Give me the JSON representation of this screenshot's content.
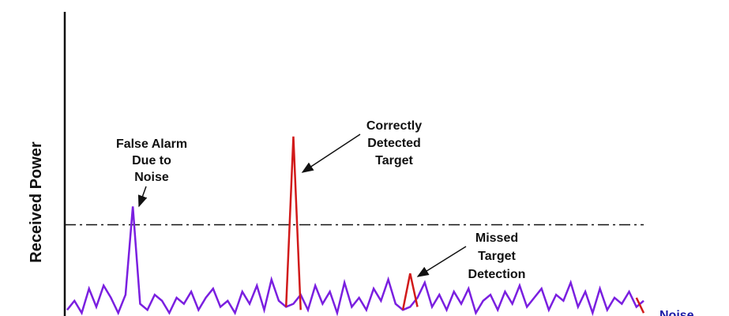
{
  "chart_data": {
    "type": "line",
    "y_label": "Received Power",
    "xlim": [
      0,
      79
    ],
    "ylim": [
      0,
      100
    ],
    "x": [
      0,
      1,
      2,
      3,
      4,
      5,
      6,
      7,
      8,
      9,
      10,
      11,
      12,
      13,
      14,
      15,
      16,
      17,
      18,
      19,
      20,
      21,
      22,
      23,
      24,
      25,
      26,
      27,
      28,
      29,
      30,
      31,
      32,
      33,
      34,
      35,
      36,
      37,
      38,
      39,
      40,
      41,
      42,
      43,
      44,
      45,
      46,
      47,
      48,
      49,
      50,
      51,
      52,
      53,
      54,
      55,
      56,
      57,
      58,
      59,
      60,
      61,
      62,
      63,
      64,
      65,
      66,
      67,
      68,
      69,
      70,
      71,
      72,
      73,
      74,
      75,
      76,
      77,
      78,
      79
    ],
    "threshold": 30,
    "series": [
      {
        "name": "Noise",
        "color": "#7a1fe0",
        "label_color": "#1a1aa6",
        "values": [
          2,
          5,
          1,
          9,
          3,
          10,
          6,
          1,
          7,
          36,
          4,
          2,
          7,
          5,
          1,
          6,
          4,
          8,
          2,
          6,
          9,
          3,
          5,
          1,
          8,
          4,
          10,
          2,
          12,
          5,
          3,
          4,
          7,
          2,
          10,
          4,
          8,
          1,
          11,
          3,
          6,
          2,
          9,
          5,
          12,
          4,
          2,
          3,
          6,
          11,
          3,
          7,
          2,
          8,
          4,
          9,
          1,
          5,
          7,
          2,
          8,
          4,
          10,
          3,
          6,
          9,
          2,
          7,
          5,
          11,
          3,
          8,
          1,
          9,
          2,
          6,
          4,
          8,
          3,
          5
        ]
      },
      {
        "color": "#d11a1a",
        "values": [
          null,
          null,
          null,
          null,
          null,
          null,
          null,
          null,
          null,
          null,
          null,
          null,
          null,
          null,
          null,
          null,
          null,
          null,
          null,
          null,
          null,
          null,
          null,
          null,
          null,
          null,
          null,
          null,
          null,
          null,
          3,
          59,
          2,
          null,
          null,
          null,
          null,
          null,
          null,
          null,
          null,
          null,
          null,
          null,
          null,
          null,
          2,
          14,
          3,
          null,
          null,
          null,
          null,
          null,
          null,
          null,
          null,
          null,
          null,
          null,
          null,
          null,
          null,
          null,
          null,
          null,
          null,
          null,
          null,
          null,
          null,
          null,
          null,
          null,
          null,
          null,
          null,
          null,
          6,
          1
        ]
      }
    ],
    "annotations": [
      [
        "False Alarm",
        "Due to",
        "Noise"
      ],
      [
        "Correctly",
        "Detected",
        "Target"
      ],
      [
        "Missed",
        "Target",
        "Detection"
      ]
    ]
  }
}
